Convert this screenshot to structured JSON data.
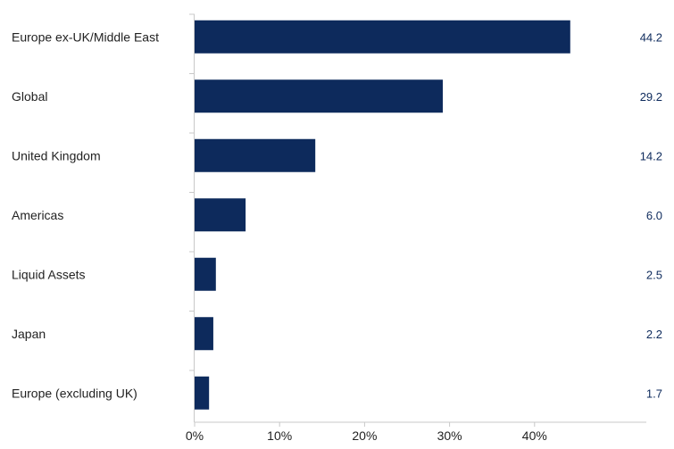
{
  "chart_data": {
    "type": "bar",
    "orientation": "horizontal",
    "categories": [
      "Europe ex-UK/Middle East",
      "Global",
      "United Kingdom",
      "Americas",
      "Liquid Assets",
      "Japan",
      "Europe (excluding UK)"
    ],
    "values": [
      44.2,
      29.2,
      14.2,
      6.0,
      2.5,
      2.2,
      1.7
    ],
    "value_labels": [
      "44.2",
      "29.2",
      "14.2",
      "6.0",
      "2.5",
      "2.2",
      "1.7"
    ],
    "x_ticks": [
      0,
      10,
      20,
      30,
      40
    ],
    "x_tick_labels": [
      "0%",
      "10%",
      "20%",
      "30%",
      "40%"
    ],
    "xlim": [
      0,
      50
    ],
    "title": "",
    "xlabel": "",
    "ylabel": "",
    "grid": false,
    "legend": "none",
    "bar_color": "#0d2a5c",
    "axis_color": "#c8c8c8"
  }
}
